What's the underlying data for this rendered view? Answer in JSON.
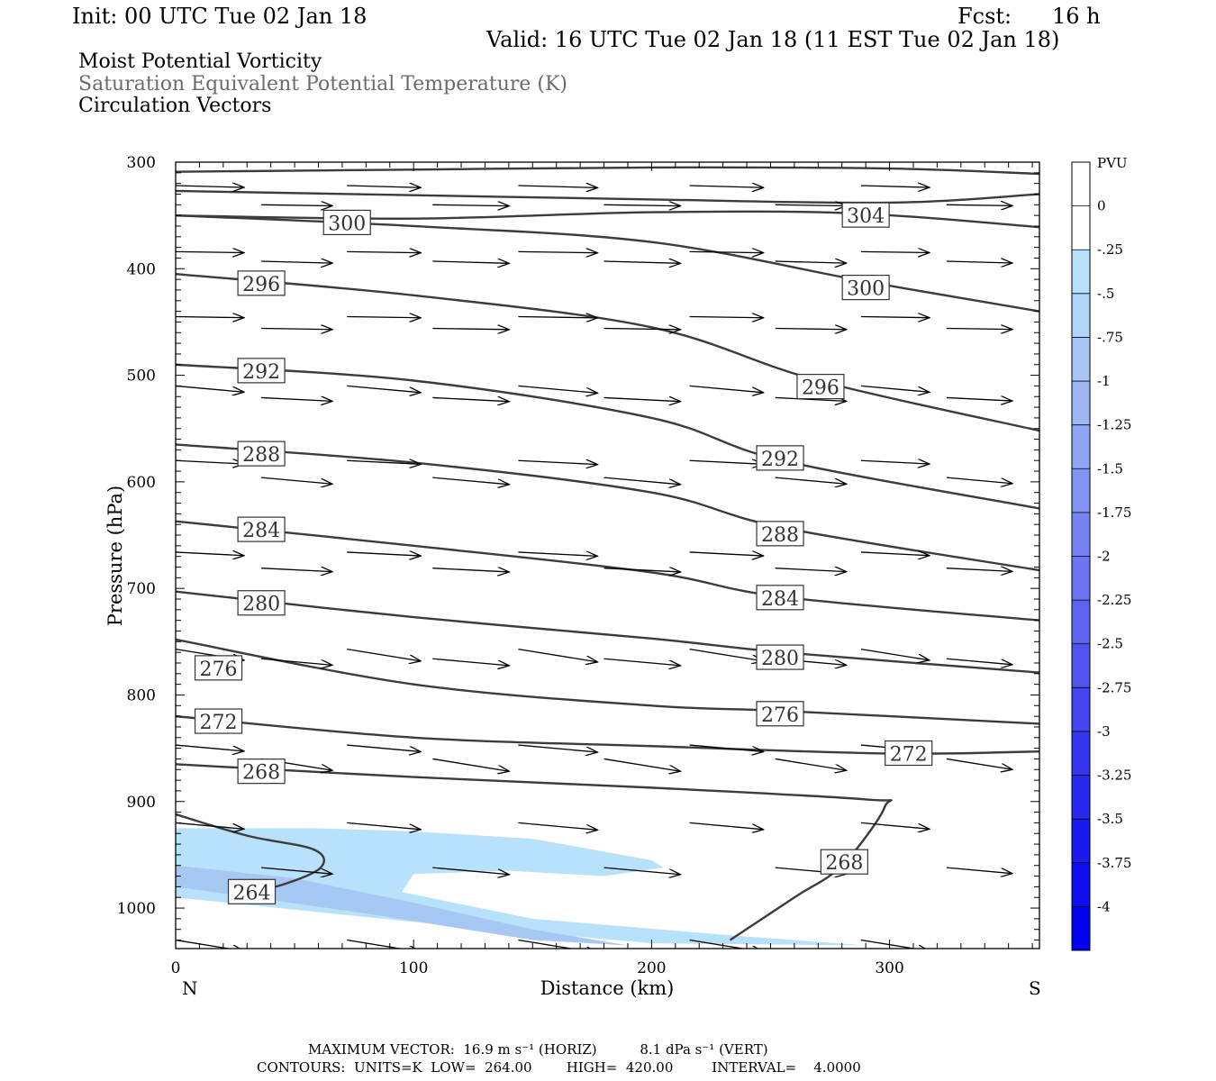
{
  "header": {
    "init": "Init: 00 UTC Tue 02 Jan 18",
    "fcst_label": "Fcst:",
    "fcst_value": "16 h",
    "valid": "Valid: 16 UTC Tue 02 Jan 18 (11 EST Tue 02 Jan 18)"
  },
  "legend_text": {
    "line1": "Moist Potential Vorticity",
    "line2": "Saturation Equivalent Potential Temperature (K)",
    "line3": "Circulation Vectors"
  },
  "colors": {
    "contour": "#3c3c3c",
    "pv_light": "#b8e2fb",
    "pv_mid": "#a8c8f4",
    "pv_deep": "#9fb0f0",
    "gray_text": "#6b6b6b"
  },
  "colorbar": {
    "unit": "PVU",
    "labels": [
      "0",
      "-.25",
      "-.5",
      "-.75",
      "-1",
      "-1.25",
      "-1.5",
      "-1.75",
      "-2",
      "-2.25",
      "-2.5",
      "-2.75",
      "-3",
      "-3.25",
      "-3.5",
      "-3.75",
      "-4"
    ],
    "colors": [
      "#ffffff",
      "#ffffff",
      "#b8e2fb",
      "#aed6fb",
      "#a6c6f8",
      "#9cb6f6",
      "#90a4f4",
      "#8494f3",
      "#7884f2",
      "#6c74f1",
      "#5f64f0",
      "#5254ef",
      "#4445ef",
      "#3636ef",
      "#2828ef",
      "#1a1aef",
      "#0c0cef",
      "#0000ef"
    ]
  },
  "footer": {
    "max_vector": "MAXIMUM VECTOR:  16.9 m s⁻¹ (HORIZ)          8.1 dPa s⁻¹ (VERT)",
    "contours": "CONTOURS:  UNITS=K  LOW=  264.00        HIGH=  420.00         INTERVAL=    4.0000"
  },
  "chart_data": {
    "type": "line",
    "title": "Moist Potential Vorticity / Saturation Equivalent Potential Temperature (K) / Circulation Vectors",
    "xlabel": "Distance (km)",
    "ylabel": "Pressure (hPa)",
    "xlim": [
      0,
      363
    ],
    "ylim": [
      1038,
      300
    ],
    "x_ticks": [
      "0",
      "100",
      "200",
      "300"
    ],
    "y_ticks": [
      "300",
      "400",
      "500",
      "600",
      "700",
      "800",
      "900",
      "1000"
    ],
    "x_end_labels": {
      "left": "N",
      "right": "S"
    },
    "contour_units": "K",
    "contour_interval": 4,
    "series": [
      {
        "name": "",
        "x": [
          0,
          100,
          200,
          300,
          363
        ],
        "y": [
          309,
          307,
          305,
          306,
          311
        ]
      },
      {
        "name": "",
        "x": [
          0,
          100,
          200,
          300,
          363
        ],
        "y": [
          327,
          331,
          335,
          338,
          330
        ]
      },
      {
        "name": "304",
        "x": [
          0,
          100,
          200,
          285,
          363
        ],
        "y": [
          350,
          353,
          347,
          348,
          361
        ]
      },
      {
        "name": "300",
        "x": [
          0,
          100,
          200,
          290,
          363
        ],
        "y": [
          350,
          360,
          375,
          412,
          440
        ]
      },
      {
        "name": "296",
        "x": [
          0,
          100,
          200,
          270,
          363
        ],
        "y": [
          405,
          425,
          455,
          505,
          552
        ]
      },
      {
        "name": "292",
        "x": [
          0,
          100,
          200,
          255,
          363
        ],
        "y": [
          490,
          505,
          540,
          580,
          625
        ]
      },
      {
        "name": "288",
        "x": [
          0,
          100,
          200,
          255,
          363
        ],
        "y": [
          565,
          582,
          610,
          643,
          683
        ]
      },
      {
        "name": "284",
        "x": [
          0,
          100,
          200,
          255,
          363
        ],
        "y": [
          637,
          660,
          685,
          708,
          730
        ]
      },
      {
        "name": "280",
        "x": [
          0,
          100,
          200,
          255,
          363
        ],
        "y": [
          703,
          727,
          747,
          760,
          779
        ]
      },
      {
        "name": "276",
        "x": [
          0,
          100,
          200,
          255,
          363
        ],
        "y": [
          748,
          790,
          810,
          815,
          827
        ]
      },
      {
        "name": "272",
        "x": [
          0,
          100,
          200,
          300,
          363
        ],
        "y": [
          820,
          840,
          848,
          855,
          853
        ]
      },
      {
        "name": "268",
        "x": [
          0,
          100,
          200,
          290,
          298,
          280,
          260,
          233
        ],
        "y": [
          865,
          877,
          887,
          898,
          905,
          960,
          990,
          1030
        ]
      },
      {
        "name": "264",
        "x": [
          0,
          30,
          58,
          61,
          45,
          25
        ],
        "y": [
          912,
          932,
          945,
          962,
          978,
          988
        ]
      }
    ],
    "contour_labels": [
      {
        "text": "304",
        "x": 290,
        "y": 350
      },
      {
        "text": "300",
        "x": 72,
        "y": 357
      },
      {
        "text": "300",
        "x": 290,
        "y": 418
      },
      {
        "text": "296",
        "x": 36,
        "y": 414
      },
      {
        "text": "296",
        "x": 271,
        "y": 511
      },
      {
        "text": "292",
        "x": 36,
        "y": 496
      },
      {
        "text": "292",
        "x": 254,
        "y": 578
      },
      {
        "text": "288",
        "x": 36,
        "y": 574
      },
      {
        "text": "288",
        "x": 254,
        "y": 649
      },
      {
        "text": "284",
        "x": 36,
        "y": 645
      },
      {
        "text": "284",
        "x": 254,
        "y": 709
      },
      {
        "text": "280",
        "x": 36,
        "y": 714
      },
      {
        "text": "280",
        "x": 254,
        "y": 765
      },
      {
        "text": "276",
        "x": 18,
        "y": 775
      },
      {
        "text": "276",
        "x": 254,
        "y": 818
      },
      {
        "text": "272",
        "x": 18,
        "y": 825
      },
      {
        "text": "272",
        "x": 308,
        "y": 855
      },
      {
        "text": "268",
        "x": 36,
        "y": 872
      },
      {
        "text": "268",
        "x": 281,
        "y": 957
      },
      {
        "text": "264",
        "x": 32,
        "y": 985
      }
    ],
    "pv_regions": [
      {
        "level": "-.25 to -.5",
        "x": [
          0,
          58,
          100,
          150,
          200,
          205,
          180,
          140,
          100,
          95,
          150,
          230,
          290,
          200,
          100,
          0
        ],
        "y": [
          925,
          925,
          928,
          935,
          955,
          962,
          970,
          965,
          968,
          985,
          1010,
          1025,
          1035,
          1033,
          1013,
          990
        ]
      },
      {
        "level": "-.5 to -.75",
        "x": [
          0,
          50,
          100,
          150,
          190,
          150,
          80,
          0
        ],
        "y": [
          960,
          972,
          995,
          1020,
          1035,
          1030,
          1005,
          980
        ]
      }
    ],
    "vectors_note": "Circulation vectors plotted on a grid every ~36 km and ~45 hPa; max vector 16.9 m s-1 (HORIZ), 8.1 dPa s-1 (VERT)"
  }
}
